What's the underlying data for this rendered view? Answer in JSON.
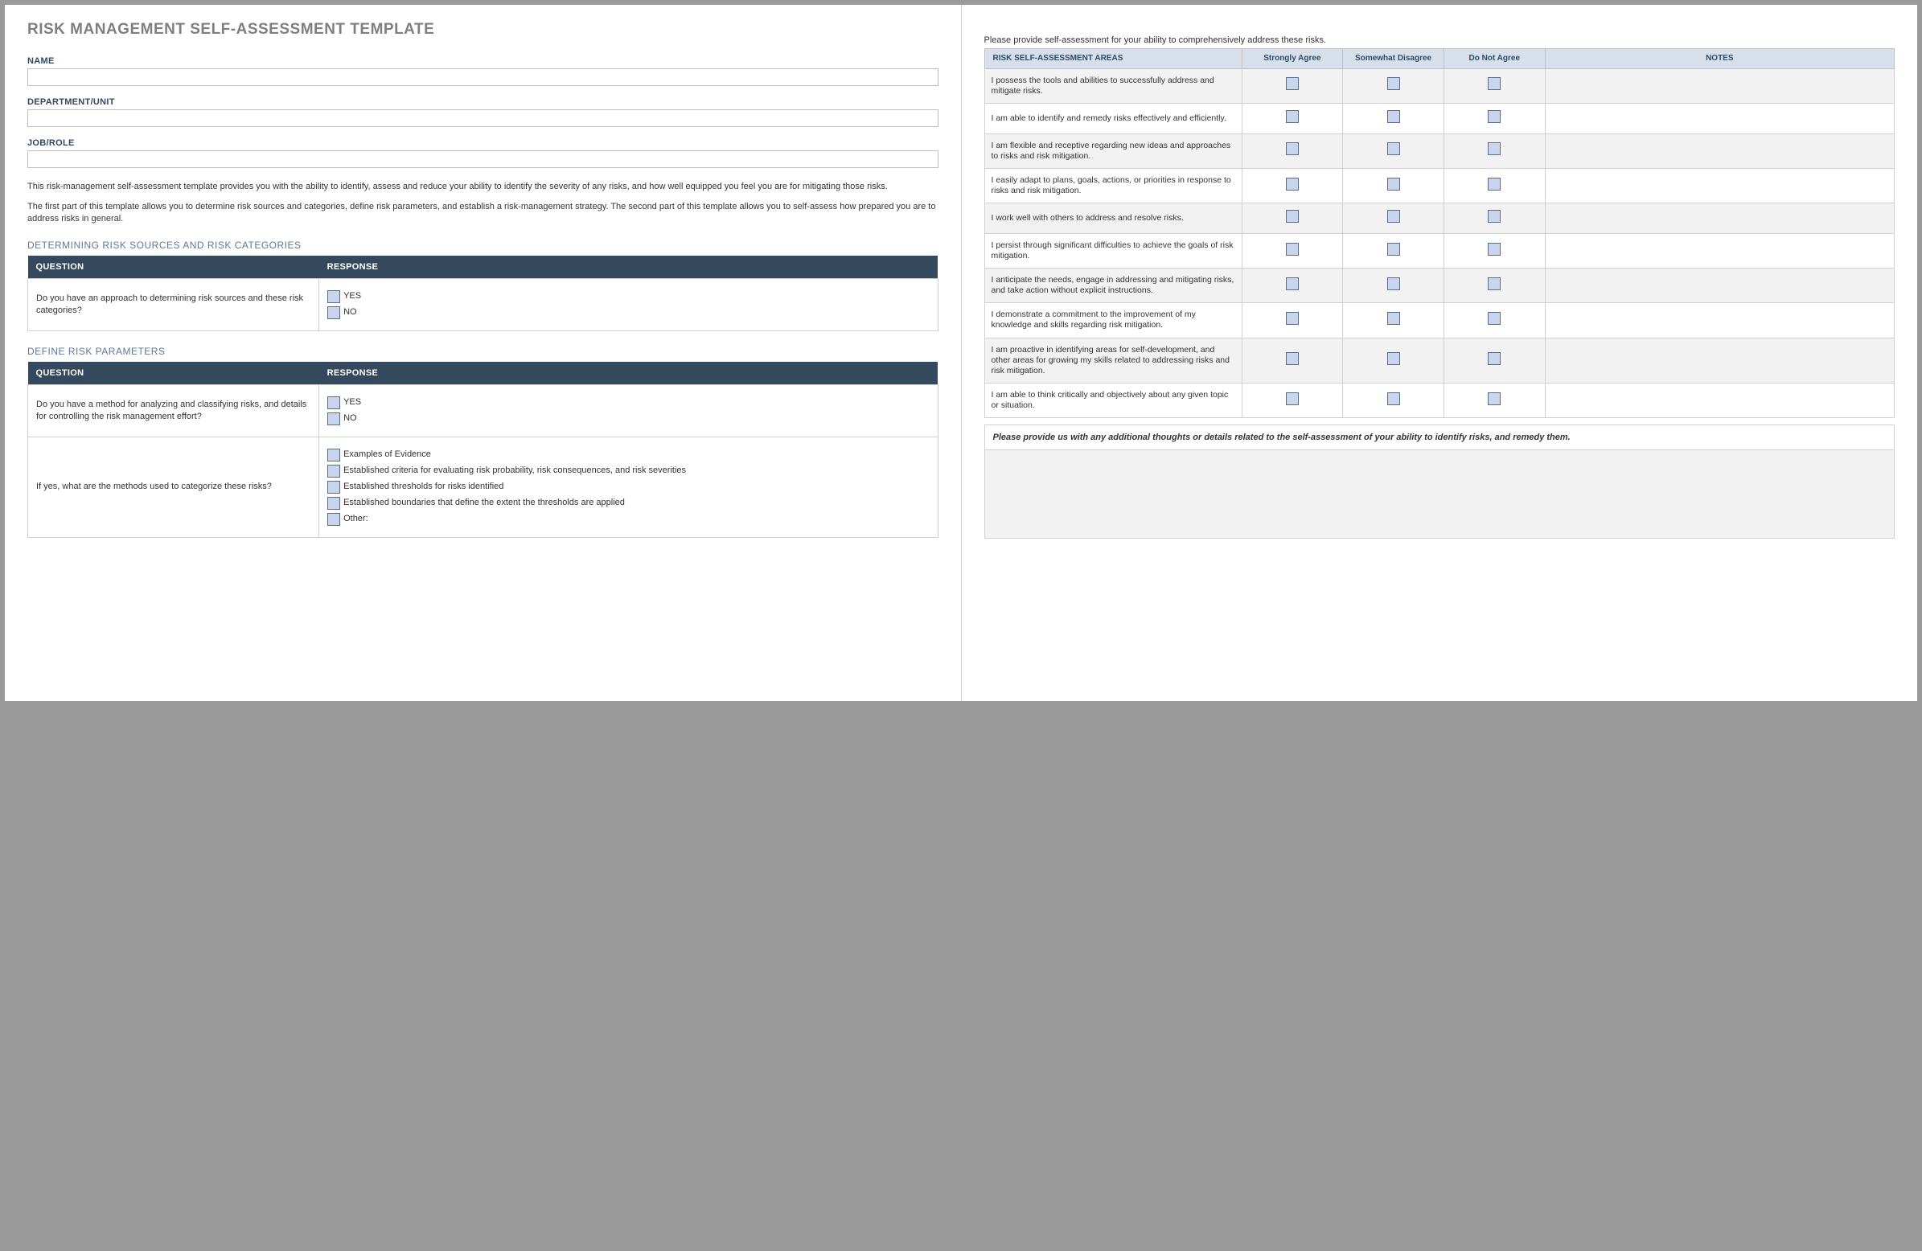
{
  "title": "RISK MANAGEMENT SELF-ASSESSMENT TEMPLATE",
  "left": {
    "fields": [
      {
        "label": "NAME"
      },
      {
        "label": "DEPARTMENT/UNIT"
      },
      {
        "label": "JOB/ROLE"
      }
    ],
    "intro_p1": "This risk-management self-assessment template provides you with the ability to identify, assess and reduce your ability to identify the severity of any risks, and how well equipped you feel you are for mitigating those risks.",
    "intro_p2": "The first part of this template allows you to determine risk sources and categories, define risk parameters, and establish a risk-management strategy. The second part of this template allows you to self-assess how prepared you are to address risks in general.",
    "section1": {
      "heading": "DETERMINING RISK SOURCES AND RISK CATEGORIES",
      "col_question": "QUESTION",
      "col_response": "RESPONSE",
      "question": "Do you have an approach to determining risk sources and these risk categories?",
      "yes": "YES",
      "no": "NO"
    },
    "section2": {
      "heading": "DEFINE RISK PARAMETERS",
      "col_question": "QUESTION",
      "col_response": "RESPONSE",
      "q1": "Do you have a method for analyzing and classifying risks, and details for controlling the risk management effort?",
      "yes": "YES",
      "no": "NO",
      "q2": "If yes, what are the methods used to categorize these risks?",
      "opts": [
        "Examples of Evidence",
        "Established criteria for evaluating risk probability, risk consequences, and risk severities",
        "Established thresholds for risks identified",
        "Established boundaries that define the extent the thresholds are applied",
        "Other:"
      ]
    }
  },
  "right": {
    "intro": "Please provide self-assessment for your ability to comprehensively address these risks.",
    "headers": {
      "area": "RISK SELF-ASSESSMENT AREAS",
      "c1": "Strongly Agree",
      "c2": "Somewhat Disagree",
      "c3": "Do Not Agree",
      "notes": "NOTES"
    },
    "rows": [
      "I possess the tools and abilities to successfully address and mitigate risks.",
      "I am able to identify and remedy risks effectively and efficiently.",
      "I am flexible and receptive regarding new ideas and approaches to risks and risk mitigation.",
      "I easily adapt to plans, goals, actions, or priorities in response to risks and risk mitigation.",
      "I work well with others to address and resolve risks.",
      "I persist through significant difficulties to achieve the goals of risk mitigation.",
      "I anticipate the needs, engage in addressing and mitigating risks, and take action without explicit instructions.",
      "I demonstrate a commitment to the improvement of my knowledge and skills regarding risk mitigation.",
      "I am proactive in identifying areas for self-development, and other areas for growing my skills related to addressing risks and risk mitigation.",
      "I am able to think critically and objectively about any given topic or situation."
    ],
    "additional": "Please provide us with any additional thoughts or details related to the self-assessment of your ability to identify risks, and remedy them."
  },
  "colors": {
    "header_bg": "#34495e",
    "accent": "#5c7a95",
    "checkbox_fill": "#c9d4ed",
    "checkbox_border": "#5b6b8a",
    "assess_header_bg": "#d7e0ea",
    "alt_row": "#f2f2f2",
    "title_color": "#7f7f7f"
  }
}
